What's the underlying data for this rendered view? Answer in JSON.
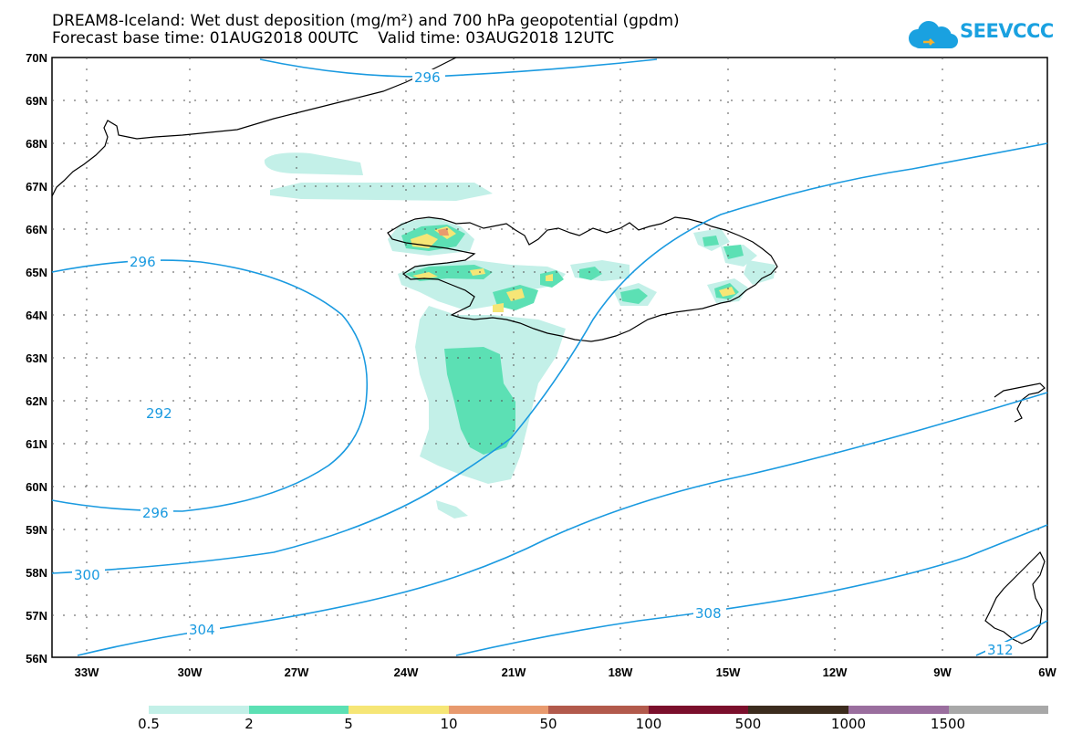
{
  "title": {
    "line1": "DREAM8-Iceland: Wet dust deposition (mg/m²) and 700 hPa geopotential (gpdm)",
    "line2": "Forecast base time: 01AUG2018 00UTC    Valid time: 03AUG2018 12UTC"
  },
  "logo": {
    "text": "SEEVCCC",
    "icon": "cloud-icon",
    "color": "#1aa1e0"
  },
  "map": {
    "latitude_labels": [
      "70N",
      "69N",
      "68N",
      "67N",
      "66N",
      "65N",
      "64N",
      "63N",
      "62N",
      "61N",
      "60N",
      "59N",
      "58N",
      "57N",
      "56N"
    ],
    "longitude_labels": [
      "33W",
      "30W",
      "27W",
      "24W",
      "21W",
      "18W",
      "15W",
      "12W",
      "9W",
      "6W"
    ],
    "contour_labels": [
      {
        "value": "296",
        "text": "296"
      },
      {
        "value": "296",
        "text": "296"
      },
      {
        "value": "292",
        "text": "292"
      },
      {
        "value": "296",
        "text": "296"
      },
      {
        "value": "300",
        "text": "300"
      },
      {
        "value": "304",
        "text": "304"
      },
      {
        "value": "308",
        "text": "308"
      },
      {
        "value": "312",
        "text": "312"
      }
    ],
    "contour_color": "#1a9ae0",
    "coast_color": "#000000"
  },
  "legend": {
    "labels": [
      "0.5",
      "2",
      "5",
      "10",
      "50",
      "100",
      "500",
      "1000",
      "1500"
    ],
    "colors": [
      "#c3f0e8",
      "#5ce0b4",
      "#f6e676",
      "#e89a6e",
      "#b25a4c",
      "#7b0f2c",
      "#3c2c1e",
      "#9a6e9e",
      "#a8a8a8"
    ]
  }
}
